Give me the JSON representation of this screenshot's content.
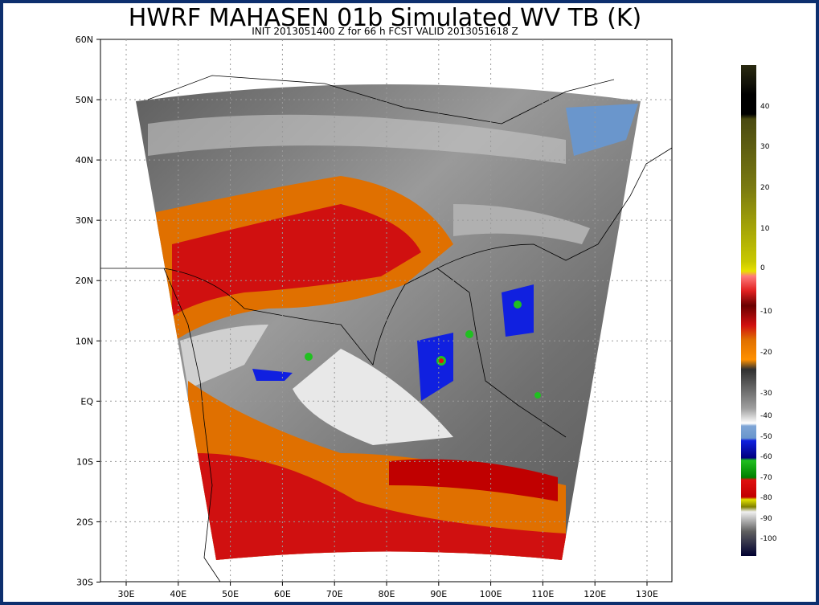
{
  "header": {
    "title": "HWRF MAHASEN 01b Simulated WV TB (K)",
    "subtitle": "INIT 2013051400 Z for 66 h FCST VALID 2013051618 Z"
  },
  "map": {
    "lat_labels": [
      "60N",
      "50N",
      "40N",
      "30N",
      "20N",
      "10N",
      "EQ",
      "10S",
      "20S",
      "30S"
    ],
    "lon_labels": [
      "30E",
      "40E",
      "50E",
      "60E",
      "70E",
      "80E",
      "90E",
      "100E",
      "110E",
      "120E",
      "130E"
    ]
  },
  "colorbar": {
    "labels": [
      40,
      30,
      20,
      10,
      0,
      -10,
      -20,
      -30,
      -40,
      -50,
      -60,
      -70,
      -80,
      -90,
      -100
    ]
  }
}
